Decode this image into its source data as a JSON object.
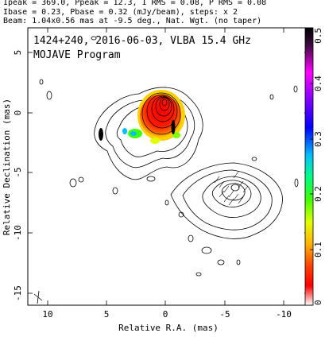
{
  "header": {
    "line1": "Ipeak = 369.0, Ppeak = 12.3, I RMS = 0.08, P RMS = 0.08",
    "line2": "Ibase = 0.23, Pbase = 0.32 (mJy/beam), steps: x 2",
    "line3": "Beam: 1.04x0.56 mas at -9.5 deg., Nat. Wgt. (no taper)"
  },
  "plot": {
    "title_line1": "1424+240, 2016-06-03, VLBA 15.4 GHz",
    "title_line2": "MOJAVE Program",
    "xlabel": "Relative R.A. (mas)",
    "ylabel": "Relative Declination (mas)",
    "x_ticks": [
      "10",
      "5",
      "0",
      "-5",
      "-10"
    ],
    "y_ticks": [
      "5",
      "0",
      "-5",
      "-10",
      "-15"
    ],
    "colorbar_ticks": [
      "0.5",
      "0.4",
      "0.3",
      "0.2",
      "0.1",
      "0"
    ]
  },
  "colors": {
    "colorbar_stops": [
      "#000000",
      "#3a0a3a",
      "#ff00ff",
      "#7f00ff",
      "#0000ff",
      "#00bfff",
      "#00ff80",
      "#40ff00",
      "#e0ff00",
      "#ffb000",
      "#ff4000",
      "#ff0000",
      "#ffffff"
    ]
  }
}
